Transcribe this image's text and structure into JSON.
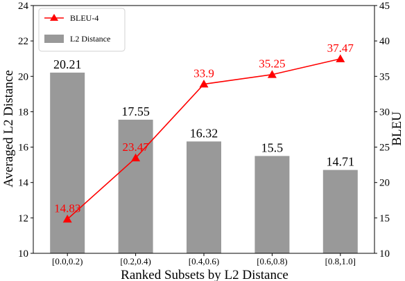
{
  "chart_data": {
    "type": "bar",
    "categories": [
      "[0.0,0.2)",
      "[0.2,0.4)",
      "[0.4,0.6)",
      "[0.6,0.8)",
      "[0.8,1.0]"
    ],
    "xlabel": "Ranked Subsets by L2 Distance",
    "ylabel_left": "Averaged L2 Distance",
    "ylabel_right": "BLEU",
    "ylim_left": [
      10,
      24
    ],
    "yticks_left": [
      10,
      12,
      14,
      16,
      18,
      20,
      22,
      24
    ],
    "ylim_right": [
      10,
      45
    ],
    "yticks_right": [
      10,
      15,
      20,
      25,
      30,
      35,
      40,
      45
    ],
    "grid": false,
    "legend_position": "top-left",
    "series": [
      {
        "name": "L2 Distance",
        "kind": "bar",
        "axis": "left",
        "color": "#999999",
        "values": [
          20.21,
          17.55,
          16.32,
          15.5,
          14.71
        ],
        "labels": [
          "20.21",
          "17.55",
          "16.32",
          "15.5",
          "14.71"
        ]
      },
      {
        "name": "BLEU-4",
        "kind": "line",
        "marker": "triangle",
        "axis": "right",
        "color": "#ff0000",
        "values": [
          14.83,
          23.47,
          33.9,
          35.25,
          37.47
        ],
        "labels": [
          "14.83",
          "23.47",
          "33.9",
          "35.25",
          "37.47"
        ]
      }
    ]
  }
}
